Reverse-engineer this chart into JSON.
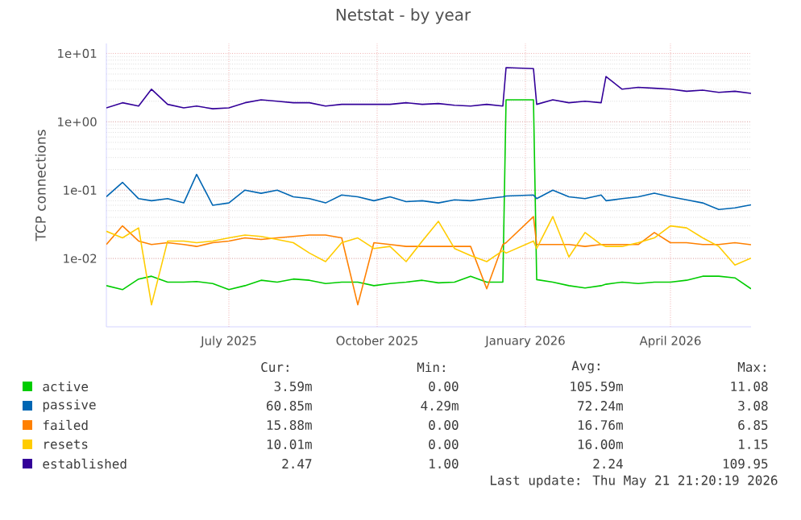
{
  "chart_data": {
    "type": "line",
    "title": "Netstat - by year",
    "ylabel": "TCP connections",
    "log": "y",
    "grid": true,
    "legend": "bottom",
    "line_style": "solid",
    "xlim": [
      "2025-04-16",
      "2026-05-21"
    ],
    "xticks": [
      {
        "value": "2025-07-01",
        "label": "July 2025"
      },
      {
        "value": "2025-10-01",
        "label": "October 2025"
      },
      {
        "value": "2026-01-01",
        "label": "January 2026"
      },
      {
        "value": "2026-04-01",
        "label": "April 2026"
      }
    ],
    "ylim": [
      0.001,
      14
    ],
    "yticks": [
      {
        "value": 0.01,
        "label": "1e-02"
      },
      {
        "value": 0.1,
        "label": "1e-01"
      },
      {
        "value": 1,
        "label": "1e+00"
      },
      {
        "value": 10,
        "label": "1e+01"
      }
    ],
    "x": [
      "2025-04-16",
      "2025-04-26",
      "2025-05-06",
      "2025-05-14",
      "2025-05-24",
      "2025-06-03",
      "2025-06-11",
      "2025-06-21",
      "2025-07-01",
      "2025-07-11",
      "2025-07-21",
      "2025-07-31",
      "2025-08-10",
      "2025-08-20",
      "2025-08-30",
      "2025-09-09",
      "2025-09-19",
      "2025-09-29",
      "2025-10-09",
      "2025-10-19",
      "2025-10-29",
      "2025-11-08",
      "2025-11-18",
      "2025-11-28",
      "2025-12-08",
      "2025-12-18",
      "2025-12-20",
      "2026-01-06",
      "2026-01-08",
      "2026-01-18",
      "2026-01-28",
      "2026-02-07",
      "2026-02-17",
      "2026-02-20",
      "2026-03-02",
      "2026-03-12",
      "2026-03-22",
      "2026-04-01",
      "2026-04-11",
      "2026-04-21",
      "2026-05-01",
      "2026-05-11",
      "2026-05-21"
    ],
    "series": [
      {
        "name": "active",
        "color": "#00cc00",
        "values": [
          0.004,
          0.0035,
          0.005,
          0.0055,
          0.0045,
          0.0045,
          0.0046,
          0.0043,
          0.0035,
          0.004,
          0.0048,
          0.0045,
          0.005,
          0.0048,
          0.0043,
          0.0045,
          0.0045,
          0.004,
          0.0043,
          0.0045,
          0.0048,
          0.0044,
          0.0045,
          0.0055,
          0.0045,
          0.0045,
          2.1,
          2.1,
          0.0049,
          0.0045,
          0.004,
          0.0037,
          0.004,
          0.0042,
          0.0045,
          0.0043,
          0.0045,
          0.0045,
          0.0048,
          0.0055,
          0.0055,
          0.0052,
          0.0036
        ]
      },
      {
        "name": "passive",
        "color": "#0066b3",
        "values": [
          0.08,
          0.13,
          0.075,
          0.07,
          0.075,
          0.065,
          0.17,
          0.06,
          0.065,
          0.1,
          0.09,
          0.1,
          0.08,
          0.075,
          0.065,
          0.085,
          0.08,
          0.07,
          0.08,
          0.068,
          0.07,
          0.065,
          0.072,
          0.07,
          0.075,
          0.08,
          0.082,
          0.085,
          0.075,
          0.1,
          0.08,
          0.075,
          0.085,
          0.07,
          0.075,
          0.08,
          0.09,
          0.08,
          0.072,
          0.065,
          0.052,
          0.055,
          0.061
        ]
      },
      {
        "name": "failed",
        "color": "#ff8000",
        "values": [
          0.016,
          0.03,
          0.018,
          0.016,
          0.017,
          0.016,
          0.015,
          0.017,
          0.018,
          0.02,
          0.019,
          0.02,
          0.021,
          0.022,
          0.022,
          0.02,
          0.0021,
          0.017,
          0.016,
          0.015,
          0.015,
          0.015,
          0.015,
          0.015,
          0.0036,
          0.016,
          0.017,
          0.041,
          0.016,
          0.016,
          0.016,
          0.015,
          0.016,
          0.016,
          0.016,
          0.016,
          0.024,
          0.017,
          0.017,
          0.016,
          0.016,
          0.017,
          0.0159
        ]
      },
      {
        "name": "resets",
        "color": "#ffcc00",
        "values": [
          0.025,
          0.02,
          0.028,
          0.0021,
          0.018,
          0.018,
          0.017,
          0.018,
          0.02,
          0.022,
          0.021,
          0.019,
          0.017,
          0.012,
          0.009,
          0.017,
          0.02,
          0.014,
          0.015,
          0.009,
          0.018,
          0.035,
          0.014,
          0.011,
          0.009,
          0.013,
          0.012,
          0.018,
          0.014,
          0.041,
          0.0105,
          0.024,
          0.016,
          0.015,
          0.015,
          0.017,
          0.02,
          0.03,
          0.028,
          0.02,
          0.015,
          0.008,
          0.0101
        ]
      },
      {
        "name": "established",
        "color": "#330099",
        "values": [
          1.6,
          1.9,
          1.7,
          3.0,
          1.8,
          1.6,
          1.7,
          1.55,
          1.6,
          1.9,
          2.1,
          2.0,
          1.9,
          1.9,
          1.7,
          1.8,
          1.8,
          1.8,
          1.8,
          1.9,
          1.8,
          1.85,
          1.75,
          1.7,
          1.8,
          1.7,
          6.2,
          6.0,
          1.8,
          2.1,
          1.9,
          2.0,
          1.9,
          4.6,
          3.0,
          3.2,
          3.1,
          3.0,
          2.8,
          2.9,
          2.7,
          2.8,
          2.6
        ]
      }
    ],
    "annotations": [
      "Cur:",
      "Min:",
      "Avg:",
      "Max:",
      "3.59m",
      "0.00",
      "105.59m",
      "11.08",
      "60.85m",
      "4.29m",
      "72.24m",
      "3.08",
      "15.88m",
      "0.00",
      "16.76m",
      "6.85",
      "10.01m",
      "0.00",
      "16.00m",
      "1.15",
      "2.47",
      "1.00",
      "2.24",
      "109.95",
      "Last update: Thu May 21 21:20:19 2026"
    ]
  }
}
